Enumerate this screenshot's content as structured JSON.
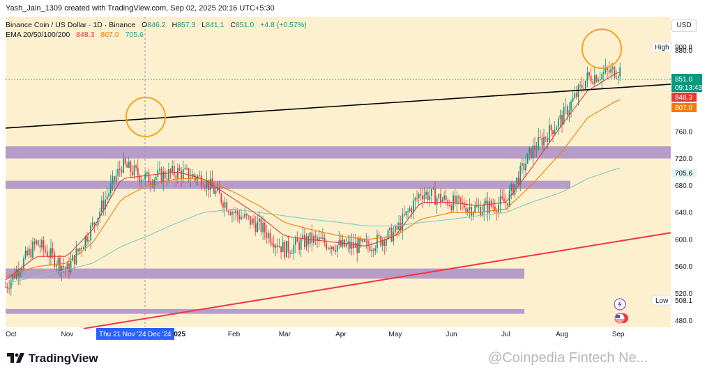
{
  "header": {
    "credit": "Yash_Jain_1309 created with TradingView.com, Sep 02, 2025 20:16 UTC+5:30",
    "symbol": "Binance Coin / US Dollar · 1D · Binance",
    "ohlc": {
      "o_label": "O",
      "o": "846.2",
      "h_label": "H",
      "h": "857.3",
      "l_label": "L",
      "l": "841.1",
      "c_label": "C",
      "c": "851.0",
      "change": "+4.8 (+0.57%)"
    },
    "ema_label": "EMA 20/50/100/200",
    "ema_values": [
      "848.3",
      "807.0",
      "705.6"
    ]
  },
  "currency_button": "USD",
  "price_scale": {
    "ticks": [
      "920.0",
      "880.0",
      "760.0",
      "720.0",
      "680.0",
      "640.0",
      "600.0",
      "560.0",
      "520.0",
      "480.0"
    ],
    "high_label": "High",
    "high_value": "900.8",
    "low_label": "Low",
    "low_value": "508.1",
    "last_price": "851.0",
    "countdown": "09:13:43",
    "ema20_tag": "848.3",
    "ema50_tag": "807.0",
    "ema100_tag": "705.6"
  },
  "time_scale": {
    "labels": [
      "Oct",
      "Nov",
      "2025",
      "Feb",
      "Mar",
      "Apr",
      "May",
      "Jun",
      "Jul",
      "Aug",
      "Sep"
    ],
    "cursor_label": "Thu 21 Nov '24",
    "partial_label": "Dec '24"
  },
  "colors": {
    "background": "#fdf0cf",
    "up_candle": "#089981",
    "down_candle": "#f23645",
    "zone": "#a98dc5",
    "trend_black": "#000000",
    "trend_red": "#f23645",
    "ema20": "#e53935",
    "ema50": "#f57c00",
    "ema100": "#80cbc4",
    "circle": "#f7a21b"
  },
  "footer": {
    "logo": "TradingView",
    "watermark": "@Coinpedia Fintech Ne..."
  },
  "icons": [
    "tradingview-logo-icon",
    "lightning-icon",
    "us-flag-icon"
  ],
  "chart_data": {
    "type": "candlestick",
    "title": "Binance Coin / US Dollar · 1D · Binance",
    "ylim": [
      470,
      930
    ],
    "x": [
      "2024-09-28",
      "2024-10-15",
      "2024-11-01",
      "2024-11-15",
      "2024-12-01",
      "2024-12-15",
      "2025-01-01",
      "2025-01-15",
      "2025-02-01",
      "2025-02-15",
      "2025-03-01",
      "2025-03-15",
      "2025-04-01",
      "2025-04-15",
      "2025-05-01",
      "2025-05-15",
      "2025-06-01",
      "2025-06-15",
      "2025-07-01",
      "2025-07-15",
      "2025-08-01",
      "2025-08-15",
      "2025-09-01"
    ],
    "close": [
      530,
      595,
      555,
      620,
      710,
      690,
      700,
      690,
      640,
      620,
      585,
      600,
      590,
      590,
      610,
      670,
      655,
      645,
      655,
      730,
      780,
      840,
      851
    ],
    "ema20": [
      540,
      575,
      575,
      615,
      690,
      695,
      700,
      690,
      660,
      635,
      605,
      600,
      595,
      590,
      605,
      655,
      655,
      650,
      655,
      705,
      770,
      820,
      848.3
    ],
    "ema50": [
      545,
      560,
      565,
      595,
      660,
      680,
      690,
      690,
      670,
      650,
      625,
      615,
      605,
      600,
      605,
      630,
      640,
      640,
      645,
      680,
      730,
      780,
      807
    ],
    "ema100": [
      535,
      545,
      555,
      565,
      590,
      605,
      625,
      640,
      645,
      640,
      635,
      630,
      625,
      620,
      620,
      625,
      630,
      635,
      640,
      655,
      670,
      690,
      705.6
    ],
    "zones": [
      [
        720,
        738
      ],
      [
        675,
        687
      ],
      [
        542,
        557
      ],
      [
        490,
        497
      ]
    ],
    "trendlines": [
      {
        "color": "black",
        "from": [
          "2024-09-28",
          765
        ],
        "to": [
          "2025-09-30",
          830
        ]
      },
      {
        "color": "red",
        "from": [
          "2024-11-10",
          468
        ],
        "to": [
          "2025-09-30",
          610
        ]
      }
    ],
    "high": 900.8,
    "low": 508.1
  }
}
